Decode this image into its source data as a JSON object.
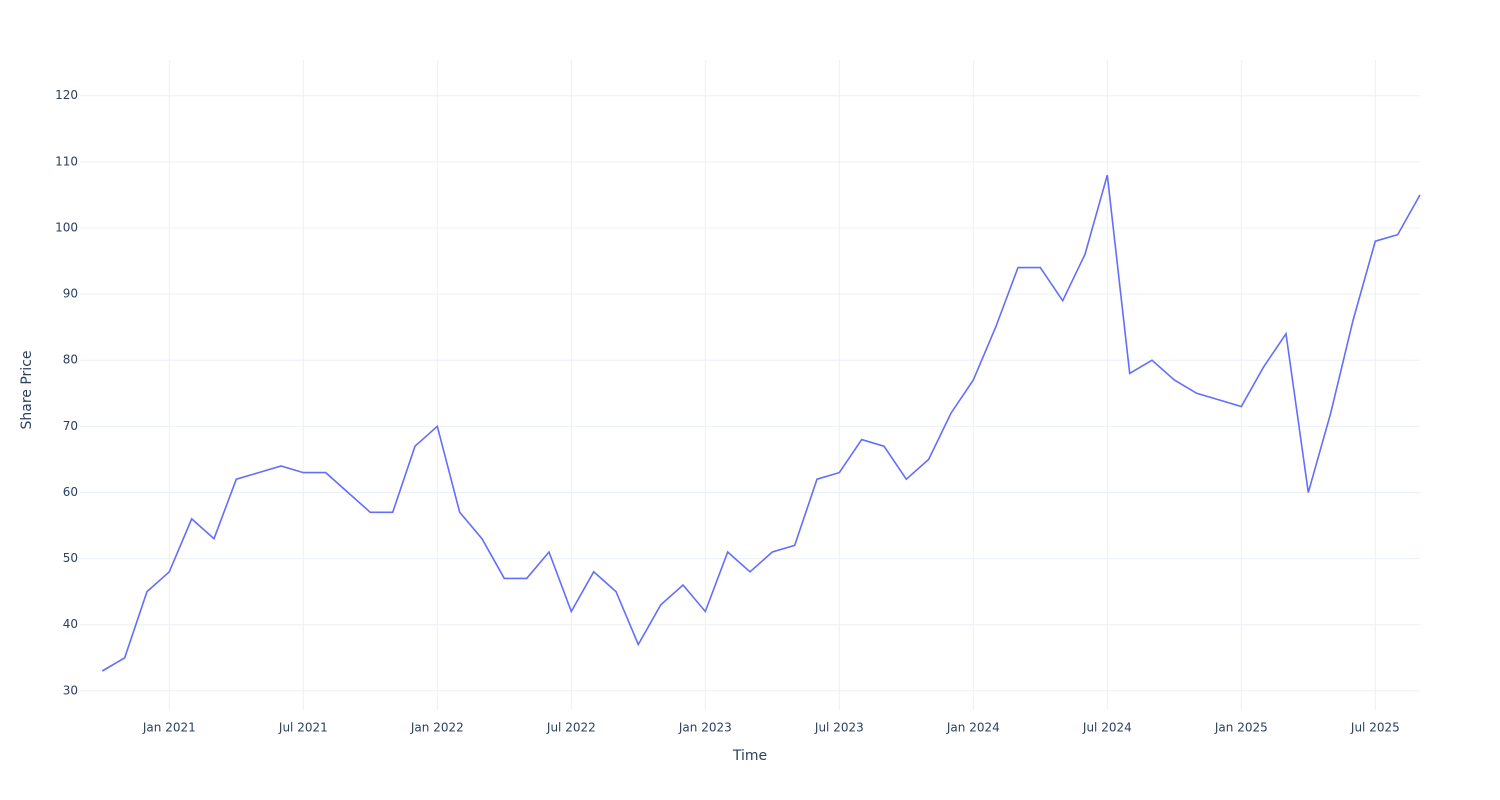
{
  "chart_data": {
    "type": "line",
    "x_label": "Time",
    "y_label": "Share Price",
    "x": [
      "2020-10",
      "2020-11",
      "2020-12",
      "2021-01",
      "2021-02",
      "2021-03",
      "2021-04",
      "2021-05",
      "2021-06",
      "2021-07",
      "2021-08",
      "2021-09",
      "2021-10",
      "2021-11",
      "2021-12",
      "2022-01",
      "2022-02",
      "2022-03",
      "2022-04",
      "2022-05",
      "2022-06",
      "2022-07",
      "2022-08",
      "2022-09",
      "2022-10",
      "2022-11",
      "2022-12",
      "2023-01",
      "2023-02",
      "2023-03",
      "2023-04",
      "2023-05",
      "2023-06",
      "2023-07",
      "2023-08",
      "2023-09",
      "2023-10",
      "2023-11",
      "2023-12",
      "2024-01",
      "2024-02",
      "2024-03",
      "2024-04",
      "2024-05",
      "2024-06",
      "2024-07",
      "2024-08",
      "2024-09",
      "2024-10",
      "2024-11",
      "2024-12",
      "2025-01",
      "2025-02",
      "2025-03",
      "2025-04",
      "2025-05",
      "2025-06",
      "2025-07",
      "2025-08",
      "2025-09"
    ],
    "series": [
      {
        "name": "Share Price",
        "color": "#636efa",
        "values": [
          33,
          35,
          45,
          48,
          56,
          53,
          62,
          63,
          64,
          63,
          63,
          60,
          57,
          57,
          67,
          70,
          57,
          53,
          47,
          47,
          51,
          42,
          48,
          45,
          37,
          43,
          46,
          42,
          51,
          48,
          51,
          52,
          62,
          63,
          68,
          67,
          62,
          65,
          72,
          77,
          85,
          94,
          94,
          89,
          96,
          108,
          78,
          80,
          77,
          75,
          74,
          73,
          79,
          84,
          60,
          72,
          86,
          98,
          99,
          105
        ]
      }
    ],
    "xlim": [
      "2020-09",
      "2025-09"
    ],
    "xticks": [
      {
        "value": "2021-01",
        "label": "Jan 2021"
      },
      {
        "value": "2021-07",
        "label": "Jul 2021"
      },
      {
        "value": "2022-01",
        "label": "Jan 2022"
      },
      {
        "value": "2022-07",
        "label": "Jul 2022"
      },
      {
        "value": "2023-01",
        "label": "Jan 2023"
      },
      {
        "value": "2023-07",
        "label": "Jul 2023"
      },
      {
        "value": "2024-01",
        "label": "Jan 2024"
      },
      {
        "value": "2024-07",
        "label": "Jul 2024"
      },
      {
        "value": "2025-01",
        "label": "Jan 2025"
      },
      {
        "value": "2025-07",
        "label": "Jul 2025"
      }
    ],
    "ylim": [
      27.1,
      125.4
    ],
    "yticks": [
      30,
      40,
      50,
      60,
      70,
      80,
      90,
      100,
      110,
      120
    ],
    "grid": true
  }
}
